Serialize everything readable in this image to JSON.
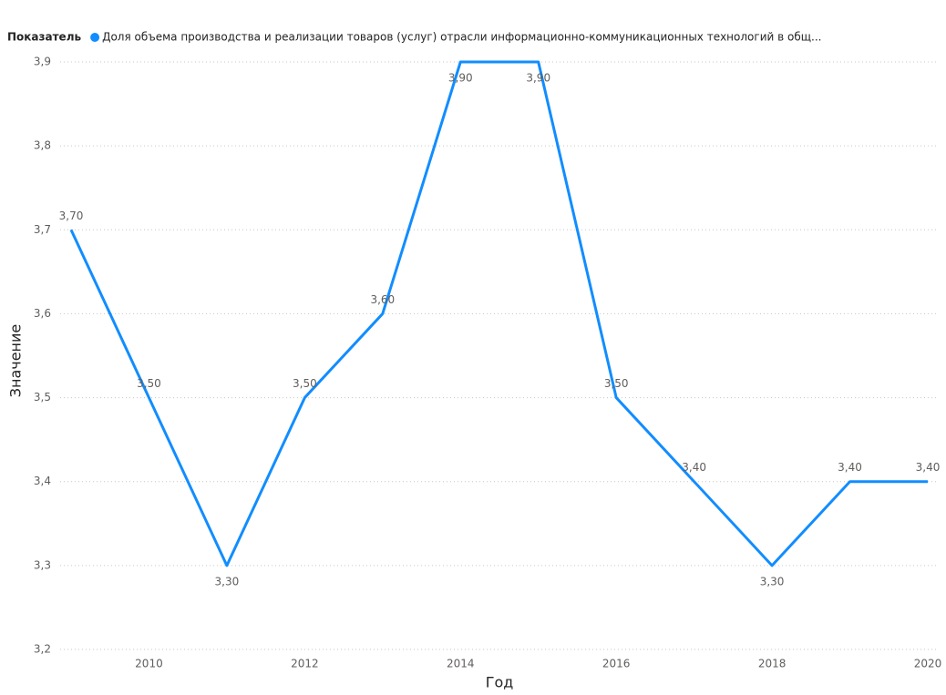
{
  "chart_data": {
    "type": "line",
    "legend_title": "Показатель",
    "x_label": "Год",
    "y_label": "Значение",
    "x": [
      2009,
      2010,
      2011,
      2012,
      2013,
      2014,
      2015,
      2016,
      2017,
      2018,
      2019,
      2020
    ],
    "series": [
      {
        "name": "Доля объема производства и реализации товаров (услуг) отрасли информационно-коммуникационных технологий в общ...",
        "color": "#118dff",
        "values": [
          3.7,
          3.5,
          3.3,
          3.5,
          3.6,
          3.9,
          3.9,
          3.5,
          3.4,
          3.3,
          3.4,
          3.4
        ],
        "value_labels": [
          "3,70",
          "3,50",
          "3,30",
          "3,50",
          "3,60",
          "3,90",
          "3,90",
          "3,50",
          "3,40",
          "3,30",
          "3,40",
          "3,40"
        ]
      }
    ],
    "xlim": [
      2009,
      2020
    ],
    "xticks": [
      2010,
      2012,
      2014,
      2016,
      2018,
      2020
    ],
    "ylim": [
      3.2,
      3.9
    ],
    "yticks": [
      {
        "value": 3.2,
        "label": "3,2"
      },
      {
        "value": 3.3,
        "label": "3,3"
      },
      {
        "value": 3.4,
        "label": "3,4"
      },
      {
        "value": 3.5,
        "label": "3,5"
      },
      {
        "value": 3.6,
        "label": "3,6"
      },
      {
        "value": 3.7,
        "label": "3,7"
      },
      {
        "value": 3.8,
        "label": "3,8"
      },
      {
        "value": 3.9,
        "label": "3,9"
      }
    ],
    "grid": true
  }
}
